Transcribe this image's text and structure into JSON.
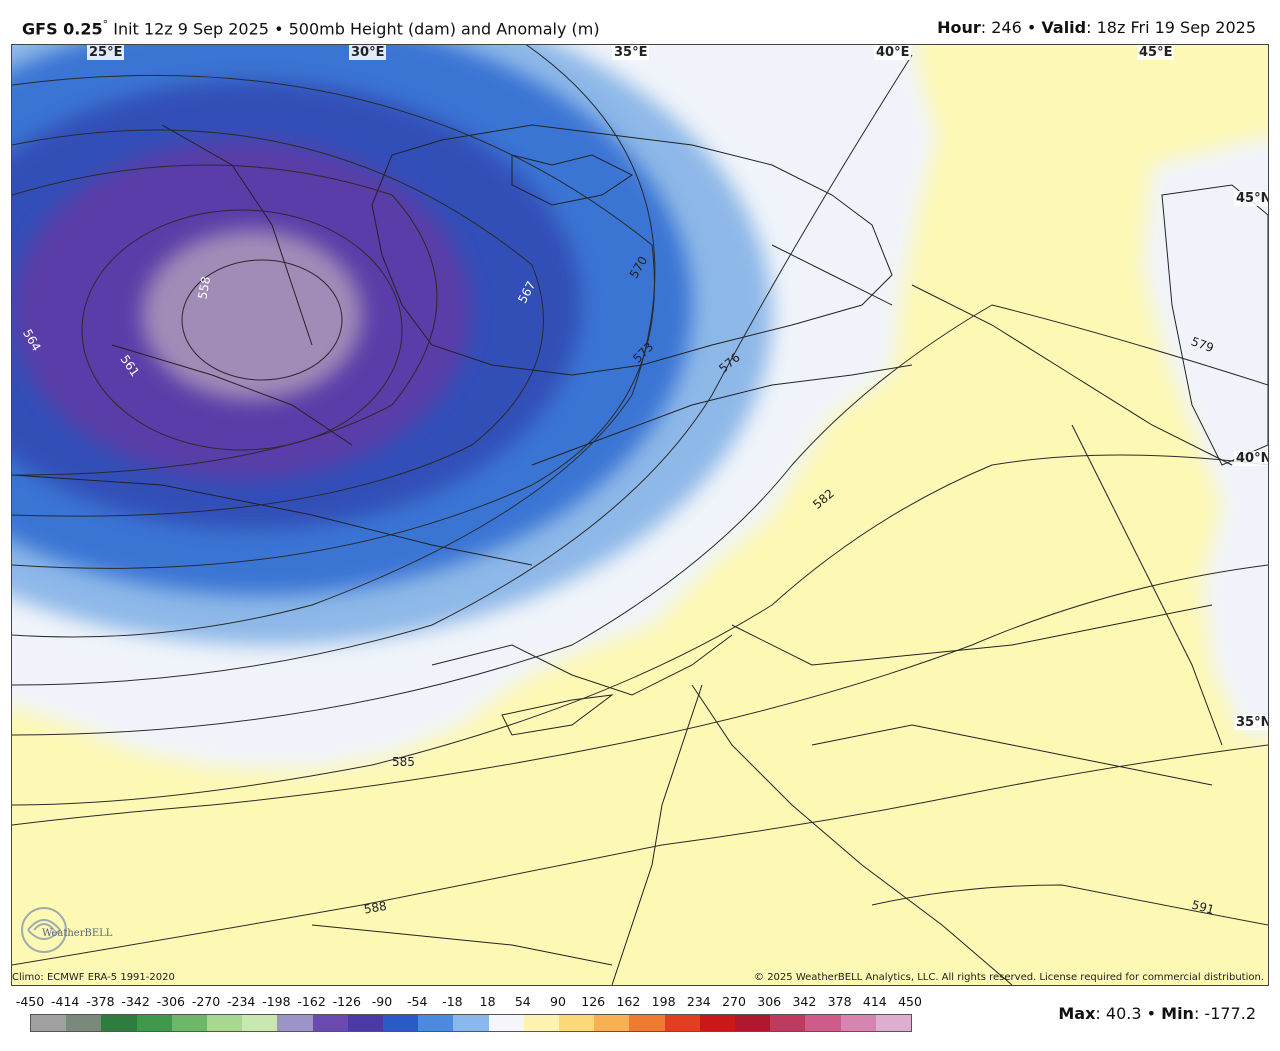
{
  "header": {
    "model": "GFS 0.25",
    "degree_mark": "°",
    "init": "Init 12z 9 Sep 2025",
    "separator": "•",
    "product": "500mb Height (dam) and Anomaly (m)",
    "hour_label": "Hour",
    "hour_value": ": 246",
    "valid_label": "Valid",
    "valid_value": ": 18z Fri 19 Sep 2025"
  },
  "map": {
    "longitude_labels": [
      "25°E",
      "30°E",
      "35°E",
      "40°E",
      "45°E"
    ],
    "latitude_labels": [
      "45°N",
      "40°N",
      "35°N"
    ],
    "contour_labels": [
      "558",
      "561",
      "564",
      "567",
      "570",
      "573",
      "576",
      "579",
      "582",
      "585",
      "588",
      "591"
    ],
    "colors": {
      "low_center": "#a18cb8",
      "deep_purple": "#5a3ca8",
      "blue": "#3a6fd0",
      "light_blue": "#8db8e8",
      "near_zero": "#f0f4fa",
      "positive": "#fdf8b4"
    }
  },
  "footer": {
    "climo": "Climo: ECMWF ERA-5 1991-2020",
    "copyright": "© 2025 WeatherBELL Analytics, LLC. All rights reserved. License required for commercial distribution.",
    "logo_text": "WeatherBELL"
  },
  "legend": {
    "tick_values": [
      "-450",
      "-414",
      "-378",
      "-342",
      "-306",
      "-270",
      "-234",
      "-198",
      "-162",
      "-126",
      "-90",
      "-54",
      "-18",
      "18",
      "54",
      "90",
      "126",
      "162",
      "198",
      "234",
      "270",
      "306",
      "342",
      "378",
      "414",
      "450"
    ],
    "colors": [
      "#a0a0a0",
      "#7a8a7a",
      "#2e7d3e",
      "#3e9a4a",
      "#6cb868",
      "#a8d890",
      "#c8e8b0",
      "#9a94c8",
      "#6a4ab0",
      "#4a3aa8",
      "#2a5ac8",
      "#4a8ae0",
      "#8ab8ec",
      "#f4f6fa",
      "#fdf3b0",
      "#fbd878",
      "#f8b050",
      "#f07a30",
      "#e04020",
      "#c81818",
      "#b01830",
      "#c03a60",
      "#d05a8a",
      "#d884b0",
      "#dcaed0"
    ],
    "max_label": "Max",
    "max_value": ": 40.3",
    "min_label": "Min",
    "min_value": ": -177.2",
    "separator": "•"
  }
}
